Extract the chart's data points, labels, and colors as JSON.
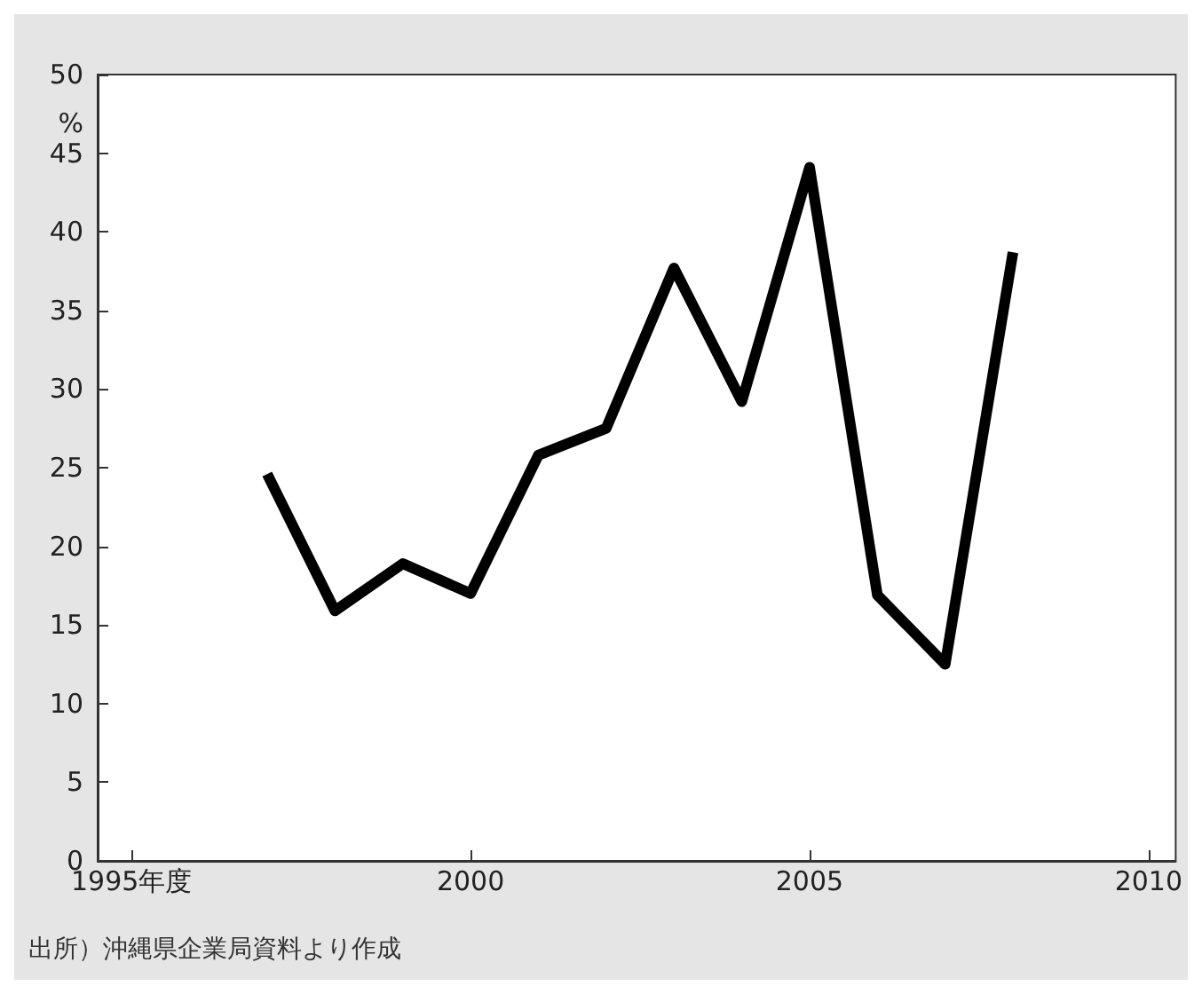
{
  "chart_data": {
    "type": "line",
    "ylabel": "%",
    "x": [
      1997,
      1998,
      1999,
      2000,
      2001,
      2002,
      2003,
      2004,
      2005,
      2006,
      2007,
      2008
    ],
    "series": [
      {
        "color": "#000000",
        "values": [
          24.6,
          15.9,
          18.9,
          17.0,
          25.8,
          27.5,
          37.7,
          29.2,
          44.1,
          16.9,
          12.5,
          38.7
        ]
      }
    ],
    "xlim": [
      1994.5,
      2010.4
    ],
    "xticks": [
      {
        "value": 1995,
        "label": "1995年度"
      },
      2000,
      2005,
      2010
    ],
    "ylim": [
      0,
      50
    ],
    "yticks": [
      0,
      5,
      10,
      15,
      20,
      25,
      30,
      35,
      40,
      45,
      50
    ],
    "grid": false,
    "marker": "none",
    "line_style": "solid",
    "annotations": [
      "出所）沖縄県企業局資料より作成"
    ]
  }
}
